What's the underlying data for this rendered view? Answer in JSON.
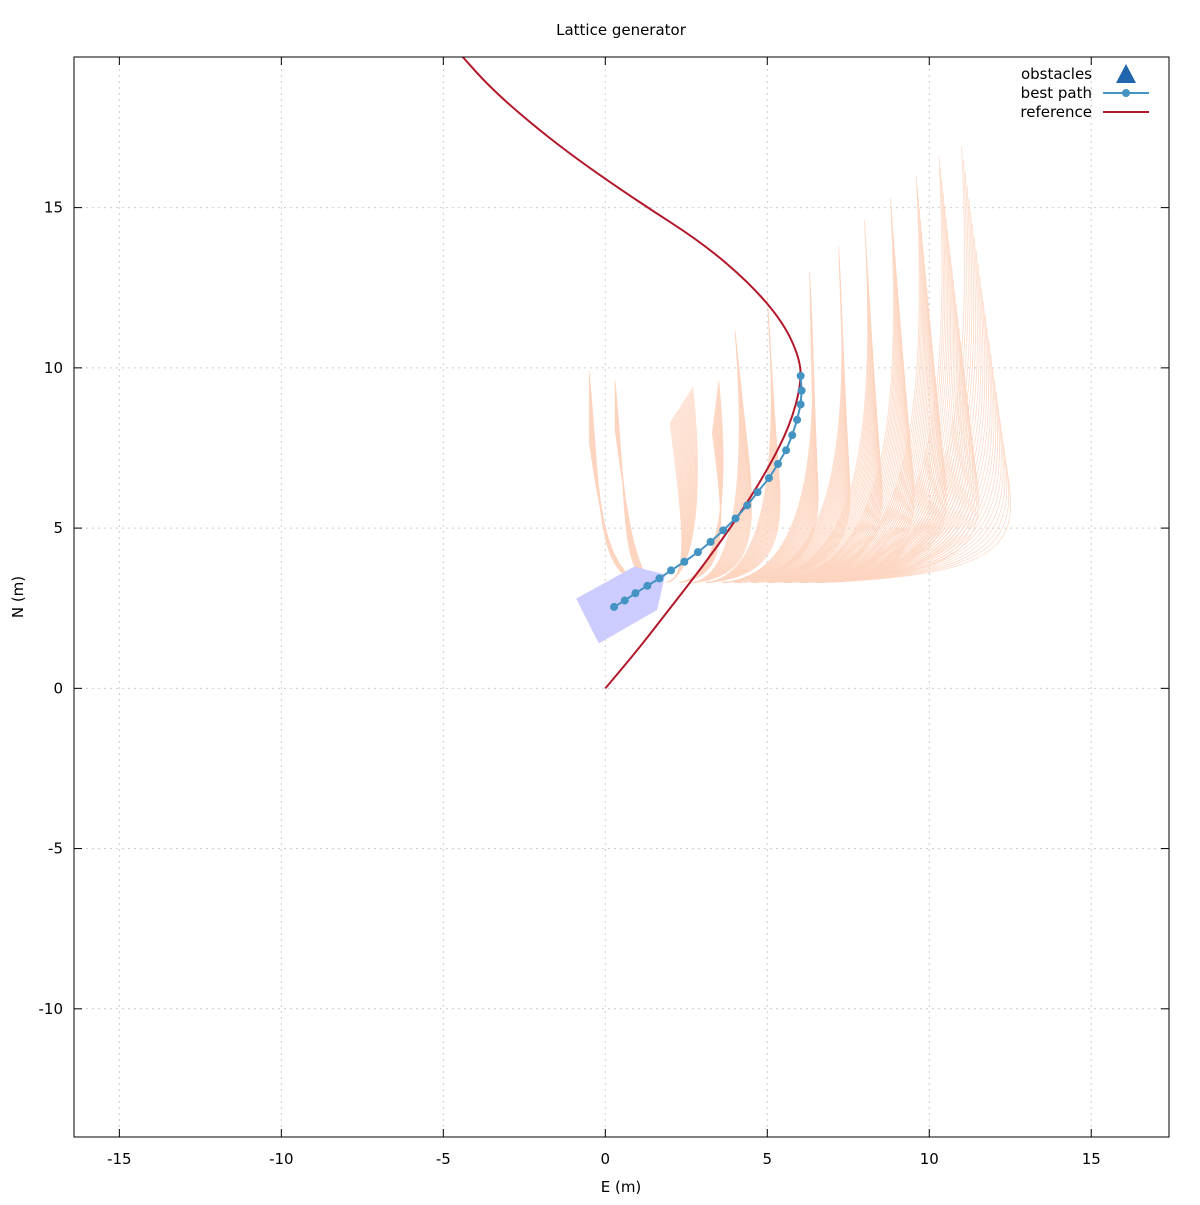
{
  "chart_data": {
    "type": "line",
    "title": "Lattice generator",
    "xlabel": "E (m)",
    "ylabel": "N (m)",
    "xlim": [
      -16.4,
      17.4
    ],
    "ylim": [
      -14,
      19.7
    ],
    "xticks": [
      -15,
      -10,
      -5,
      0,
      5,
      10,
      15
    ],
    "yticks": [
      -10,
      -5,
      0,
      5,
      10,
      15
    ],
    "grid": true,
    "legend_position": "top-right",
    "legend": [
      {
        "key": "obstacles",
        "label": "obstacles",
        "color": "#2166ac",
        "marker": "triangle"
      },
      {
        "key": "best_path",
        "label": "best path",
        "color": "#4393c3",
        "marker": "circle-line"
      },
      {
        "key": "reference",
        "label": "reference",
        "color": "#b2182b",
        "marker": "line"
      }
    ],
    "colors": {
      "candidates": "#fdd5c0",
      "vehicle": "#ccccff",
      "grid": "#cccccc"
    },
    "series": [
      {
        "name": "reference",
        "color": "#b2182b",
        "points": [
          [
            0,
            0
          ],
          [
            1,
            1.2
          ],
          [
            2,
            2.5
          ],
          [
            3,
            3.8
          ],
          [
            4,
            5.2
          ],
          [
            5,
            6.8
          ],
          [
            5.7,
            8.2
          ],
          [
            6.05,
            9.5
          ],
          [
            6,
            10.3
          ],
          [
            5.5,
            11.4
          ],
          [
            4.5,
            12.6
          ],
          [
            3,
            13.9
          ],
          [
            1,
            15.2
          ],
          [
            -1,
            16.6
          ],
          [
            -2.5,
            17.8
          ],
          [
            -3.6,
            18.8
          ],
          [
            -4.4,
            19.7
          ]
        ]
      },
      {
        "name": "best path",
        "color": "#4393c3",
        "points": [
          [
            0.27,
            2.54
          ],
          [
            0.6,
            2.74
          ],
          [
            0.93,
            2.97
          ],
          [
            1.3,
            3.2
          ],
          [
            1.67,
            3.43
          ],
          [
            2.03,
            3.68
          ],
          [
            2.44,
            3.95
          ],
          [
            2.86,
            4.25
          ],
          [
            3.25,
            4.57
          ],
          [
            3.64,
            4.93
          ],
          [
            4.02,
            5.3
          ],
          [
            4.38,
            5.71
          ],
          [
            4.7,
            6.12
          ],
          [
            5.05,
            6.56
          ],
          [
            5.33,
            7
          ],
          [
            5.58,
            7.43
          ],
          [
            5.77,
            7.9
          ],
          [
            5.92,
            8.38
          ],
          [
            6.03,
            8.86
          ],
          [
            6.06,
            9.29
          ],
          [
            6.03,
            9.75
          ]
        ]
      }
    ],
    "vehicle_polygon": [
      [
        -0.9,
        2.8
      ],
      [
        0.9,
        3.8
      ],
      [
        1.85,
        3.55
      ],
      [
        1.6,
        2.45
      ],
      [
        -0.2,
        1.4
      ]
    ],
    "candidate_fans": [
      {
        "start": [
          1.2,
          3.3
        ],
        "tip": [
          -0.5,
          9.9
        ],
        "hook": [
          -0.5,
          7.7
        ]
      },
      {
        "start": [
          1.5,
          3.3
        ],
        "tip": [
          0.3,
          9.6
        ],
        "hook": [
          0.3,
          8.1
        ]
      },
      {
        "start": [
          1.9,
          3.3
        ],
        "tip": [
          2.7,
          9.4
        ],
        "hook": [
          2.0,
          8.3
        ]
      },
      {
        "start": [
          2.3,
          3.3
        ],
        "tip": [
          3.5,
          9.6
        ],
        "hook": [
          3.3,
          8.0
        ]
      },
      {
        "start": [
          2.7,
          3.3
        ],
        "tip": [
          4.0,
          11.2
        ],
        "hook": [
          4.3,
          8.3
        ]
      },
      {
        "start": [
          3.1,
          3.3
        ],
        "tip": [
          5.0,
          12.2
        ],
        "hook": [
          5.2,
          8.2
        ]
      },
      {
        "start": [
          3.6,
          3.3
        ],
        "tip": [
          6.3,
          13.0
        ],
        "hook": [
          6.4,
          8.0
        ]
      },
      {
        "start": [
          4.0,
          3.3
        ],
        "tip": [
          7.2,
          13.8
        ],
        "hook": [
          7.4,
          7.9
        ]
      },
      {
        "start": [
          4.5,
          3.3
        ],
        "tip": [
          8.0,
          14.6
        ],
        "hook": [
          8.4,
          7.7
        ]
      },
      {
        "start": [
          5.0,
          3.3
        ],
        "tip": [
          8.8,
          15.3
        ],
        "hook": [
          9.4,
          7.5
        ]
      },
      {
        "start": [
          5.5,
          3.3
        ],
        "tip": [
          9.6,
          16.0
        ],
        "hook": [
          10.4,
          7.3
        ]
      },
      {
        "start": [
          6.0,
          3.3
        ],
        "tip": [
          10.3,
          16.6
        ],
        "hook": [
          11.4,
          7.0
        ]
      },
      {
        "start": [
          6.5,
          3.3
        ],
        "tip": [
          11.0,
          16.9
        ],
        "hook": [
          12.4,
          6.8
        ]
      }
    ]
  }
}
